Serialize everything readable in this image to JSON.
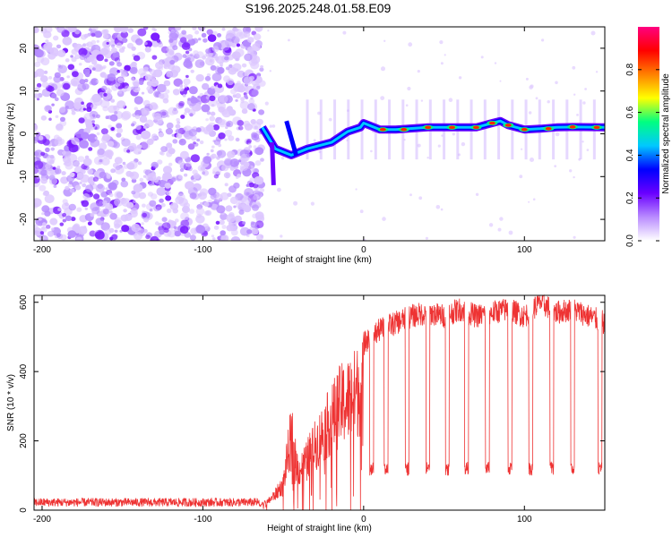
{
  "figure": {
    "title": "S196.2025.248.01.58.E09"
  },
  "chart_data": [
    {
      "type": "heatmap",
      "title": "",
      "xlabel": "Height of straight line (km)",
      "ylabel": "Frequency (Hz)",
      "xlim": [
        -205,
        150
      ],
      "ylim": [
        -25,
        25
      ],
      "xticks": [
        -200,
        -100,
        0,
        100
      ],
      "yticks": [
        -20,
        -10,
        0,
        10,
        20
      ],
      "colorbar": {
        "label": "Normalized spectral amplitude",
        "range": [
          0,
          1
        ],
        "ticks": [
          0.0,
          0.2,
          0.4,
          0.6,
          0.8
        ],
        "colormap": [
          "#ffffff",
          "#b98bff",
          "#6a00ff",
          "#0000ff",
          "#00c8ff",
          "#00ff80",
          "#ffff00",
          "#ff8000",
          "#ff0000",
          "#ff0080"
        ]
      },
      "noise_region_x": [
        -205,
        -63
      ],
      "signal_track": {
        "x": [
          -63,
          -55,
          -45,
          -35,
          -20,
          -10,
          -2,
          0,
          10,
          20,
          40,
          60,
          70,
          80,
          85,
          90,
          100,
          110,
          120,
          130,
          150
        ],
        "freq": [
          1.5,
          -3.5,
          -5,
          -3.5,
          -2,
          0.5,
          1.5,
          2.5,
          1,
          1,
          1.5,
          1.5,
          1.5,
          2.5,
          3,
          2,
          1,
          1.2,
          1.5,
          1.6,
          1.5
        ]
      }
    },
    {
      "type": "line",
      "title": "",
      "xlabel": "Height of straight line (km)",
      "ylabel": "SNR (10 * v/v)",
      "xlim": [
        -205,
        150
      ],
      "ylim": [
        0,
        620
      ],
      "xticks": [
        -200,
        -100,
        0,
        100
      ],
      "yticks": [
        0,
        200,
        400,
        600
      ],
      "color": "#ee3333",
      "series": [
        {
          "name": "SNR",
          "x": [
            -205,
            -65,
            -60,
            -55,
            -50,
            -45,
            -42,
            -40,
            -35,
            -30,
            -25,
            -20,
            -15,
            -10,
            -5,
            0,
            5,
            10,
            15,
            20,
            25,
            30,
            40,
            50,
            60,
            70,
            80,
            90,
            100,
            110,
            120,
            130,
            140,
            150
          ],
          "values": [
            20,
            20,
            30,
            60,
            100,
            300,
            180,
            150,
            200,
            250,
            300,
            350,
            400,
            420,
            450,
            480,
            500,
            520,
            530,
            540,
            550,
            560,
            570,
            560,
            580,
            560,
            570,
            580,
            560,
            600,
            570,
            580,
            560,
            540
          ]
        }
      ],
      "dropouts_x": [
        5,
        14,
        27,
        40,
        52,
        64,
        77,
        91,
        104,
        117,
        130,
        147
      ],
      "dropout_level": 120
    }
  ]
}
